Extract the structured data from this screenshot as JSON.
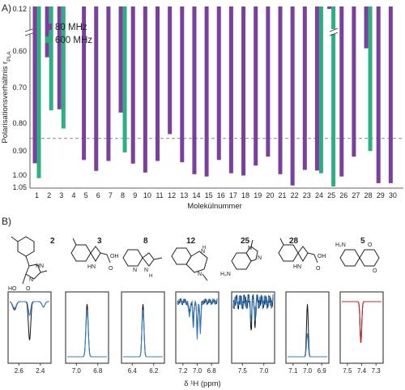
{
  "chart_data": {
    "type": "bar",
    "panel_label": "A)",
    "xlabel": "Molekülnummer",
    "ylabel": "Polarisationsverhältnis r",
    "ylabel_sub": "PLA",
    "categories": [
      "1",
      "2",
      "3",
      "4",
      "5",
      "6",
      "7",
      "8",
      "9",
      "10",
      "11",
      "12",
      "13",
      "14",
      "15",
      "16",
      "17",
      "18",
      "19",
      "20",
      "21",
      "22",
      "23",
      "24",
      "25",
      "26",
      "27",
      "28",
      "29",
      "30"
    ],
    "series": [
      {
        "name": "80 MHz",
        "color": "#7B3F9E",
        "values": [
          0.975,
          0.655,
          0.812,
          null,
          0.965,
          0.998,
          0.968,
          0.822,
          0.976,
          1.003,
          0.968,
          0.887,
          0.972,
          1.008,
          1.015,
          0.965,
          1.005,
          1.012,
          0.982,
          0.955,
          1.008,
          1.042,
          0.995,
          0.997,
          0.12,
          1.015,
          0.955,
          0.628,
          1.035,
          1.035
        ]
      },
      {
        "name": "600 MHz",
        "color": "#2EAF82",
        "values": [
          1.02,
          0.815,
          0.87,
          null,
          null,
          null,
          null,
          0.942,
          null,
          null,
          null,
          null,
          null,
          null,
          null,
          null,
          null,
          null,
          null,
          null,
          null,
          null,
          null,
          1.005,
          1.045,
          null,
          null,
          0.938,
          null,
          null
        ]
      }
    ],
    "yticks_lower": [
      "0.60",
      "0.70",
      "0.80",
      "0.90",
      "1.00",
      "1.05"
    ],
    "ytick_upper": "0.12",
    "yrange_lower": [
      0.58,
      1.05
    ],
    "yrange_upper": [
      0.08,
      0.13
    ],
    "axis_break": true,
    "reference_line": 0.9,
    "legend_position": "top-left",
    "grid": false
  },
  "panel_b": {
    "panel_label": "B)",
    "xlabel": "δ ¹H (ppm)",
    "molecules": [
      {
        "number": "2",
        "ticks": [
          "2.6",
          "2.4"
        ]
      },
      {
        "number": "3",
        "ticks": [
          "7.0",
          "6.8"
        ]
      },
      {
        "number": "8",
        "ticks": [
          "6.4",
          "6.2"
        ]
      },
      {
        "number": "12",
        "ticks": [
          "7.2",
          "7.0",
          "6.8"
        ]
      },
      {
        "number": "25",
        "ticks": [
          "7.5",
          "7.0"
        ]
      },
      {
        "number": "28",
        "ticks": [
          "7.1",
          "7.0",
          "6.9"
        ]
      },
      {
        "number": "5",
        "ticks": [
          "7.5",
          "7.4",
          "7.3"
        ]
      }
    ],
    "atom_labels": {
      "m2": [
        "HN",
        "N",
        "HO",
        "O"
      ],
      "m3": [
        "HN",
        "OH",
        "O"
      ],
      "m8": [
        "N",
        "N",
        "H"
      ],
      "m12": [
        "N",
        "H",
        "N"
      ],
      "m25": [
        "N",
        "N",
        "H₂N"
      ],
      "m28": [
        "HN",
        "OH",
        "O"
      ],
      "m5": [
        "H₂N",
        "O",
        "O"
      ]
    },
    "colors": {
      "spectrum_black": "#111111",
      "spectrum_blue": "#3A7FC1",
      "spectrum_red": "#C0282D"
    }
  }
}
